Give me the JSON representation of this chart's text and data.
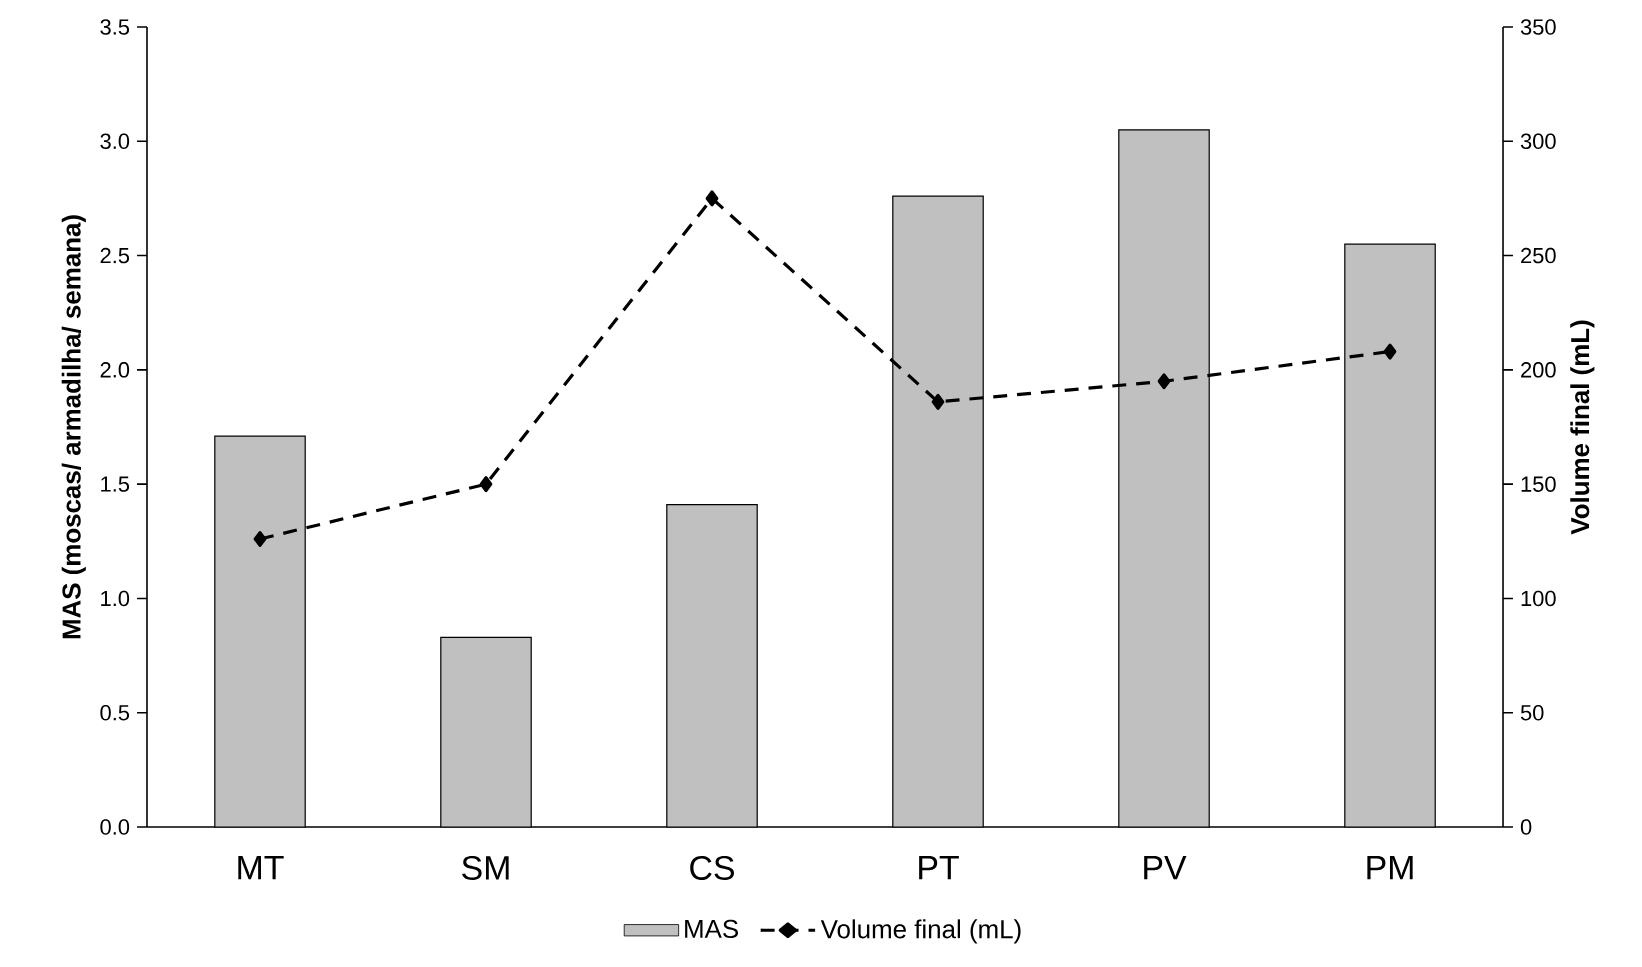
{
  "chart_data": {
    "type": "bar",
    "categories": [
      "MT",
      "SM",
      "CS",
      "PT",
      "PV",
      "PM"
    ],
    "series": [
      {
        "name": "MAS",
        "color": "#c0c0c0",
        "values": [
          1.71,
          0.83,
          1.41,
          2.76,
          3.05,
          2.55
        ]
      },
      {
        "name": "Volume final (mL)",
        "type": "line",
        "axis": "y2",
        "color": "#000000",
        "marker": "diamond",
        "line_style": "dashed",
        "values": [
          126,
          150,
          275,
          186,
          195,
          208
        ]
      }
    ],
    "ylabel": "MAS (moscas/ armadilha/ semana)",
    "y2label": "Volume final (mL)",
    "ylim": [
      0,
      3.5
    ],
    "yticks": [
      {
        "value": 0,
        "label": "0.0"
      },
      {
        "value": 0.5,
        "label": "0.5"
      },
      {
        "value": 1,
        "label": "1.0"
      },
      {
        "value": 1.5,
        "label": "1.5"
      },
      {
        "value": 2,
        "label": "2.0"
      },
      {
        "value": 2.5,
        "label": "2.5"
      },
      {
        "value": 3,
        "label": "3.0"
      },
      {
        "value": 3.5,
        "label": "3.5"
      }
    ],
    "y2lim": [
      0,
      350
    ],
    "y2ticks": [
      0,
      50,
      100,
      150,
      200,
      250,
      300,
      350
    ],
    "legend": "bottom"
  }
}
